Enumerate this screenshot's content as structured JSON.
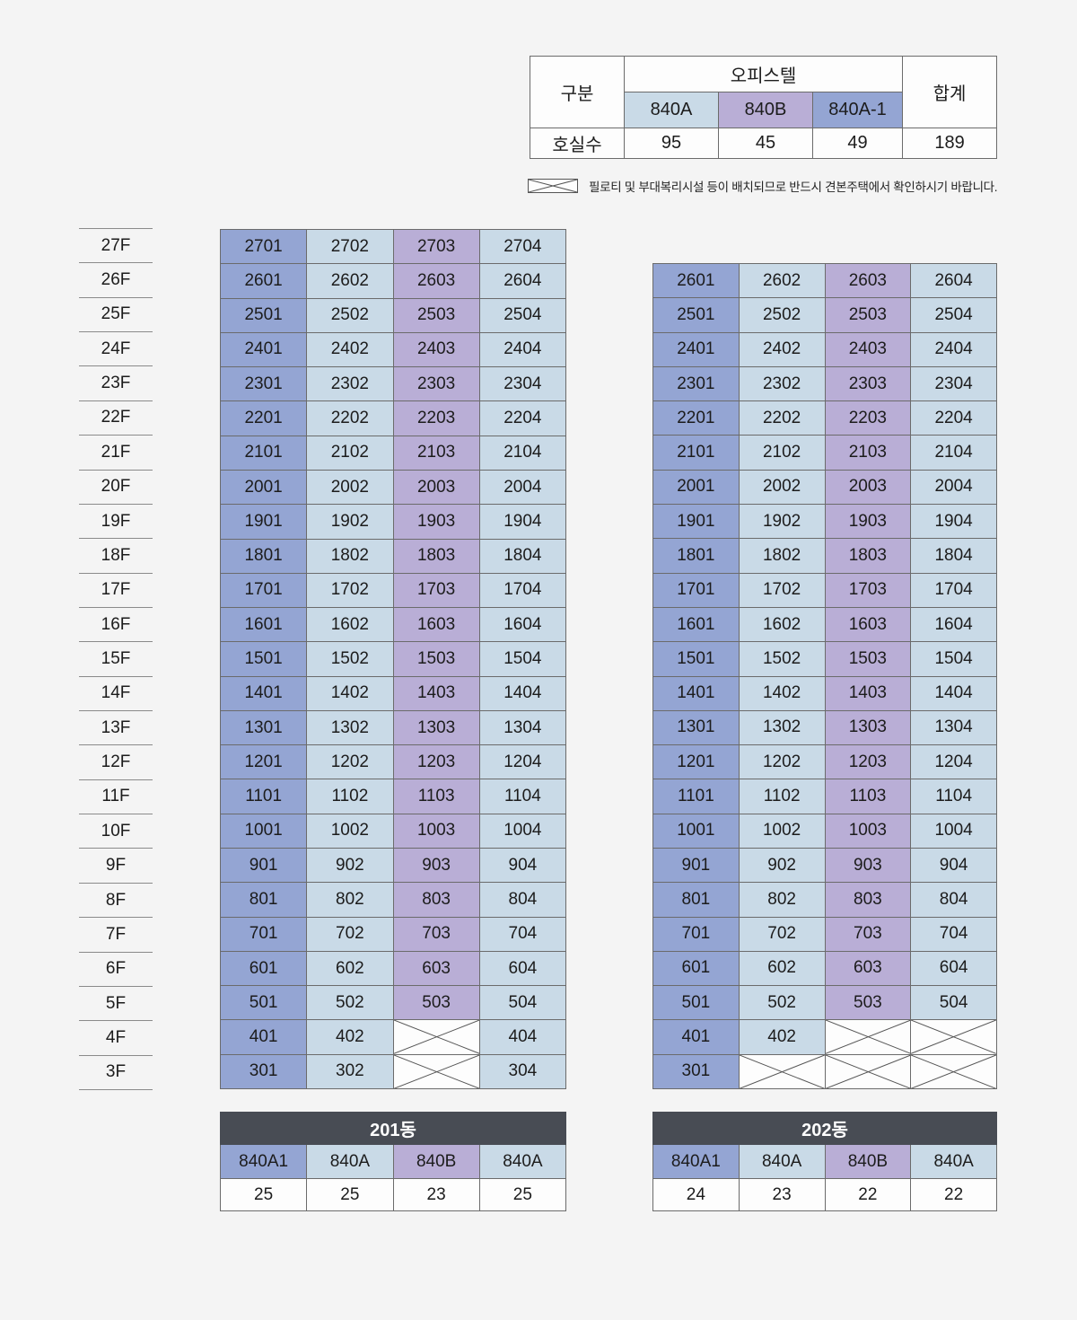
{
  "colors": {
    "background": "#f4f4f4",
    "type_840a": "#c9dae7",
    "type_840b": "#b9aed6",
    "type_840a1": "#94a5d3",
    "dong_header": "#484c54",
    "grid_border": "#6b6b6b"
  },
  "summary_table": {
    "corner_label": "구분",
    "group_label": "오피스텔",
    "total_label": "합계",
    "row_label": "호실수",
    "types": [
      {
        "label": "840A",
        "count": "95"
      },
      {
        "label": "840B",
        "count": "45"
      },
      {
        "label": "840A-1",
        "count": "49"
      }
    ],
    "total_count": "189"
  },
  "legend": {
    "note": "필로티 및 부대복리시설 등이 배치되므로 반드시 견본주택에서 확인하시기 바랍니다."
  },
  "floors": [
    "27F",
    "26F",
    "25F",
    "24F",
    "23F",
    "22F",
    "21F",
    "20F",
    "19F",
    "18F",
    "17F",
    "16F",
    "15F",
    "14F",
    "13F",
    "12F",
    "11F",
    "10F",
    "9F",
    "8F",
    "7F",
    "6F",
    "5F",
    "4F",
    "3F"
  ],
  "buildings": [
    {
      "name": "201동",
      "unit_types": [
        "840A1",
        "840A",
        "840B",
        "840A"
      ],
      "type_counts": [
        "25",
        "25",
        "23",
        "25"
      ],
      "rows": [
        [
          "2701",
          "2702",
          "2703",
          "2704"
        ],
        [
          "2601",
          "2602",
          "2603",
          "2604"
        ],
        [
          "2501",
          "2502",
          "2503",
          "2504"
        ],
        [
          "2401",
          "2402",
          "2403",
          "2404"
        ],
        [
          "2301",
          "2302",
          "2303",
          "2304"
        ],
        [
          "2201",
          "2202",
          "2203",
          "2204"
        ],
        [
          "2101",
          "2102",
          "2103",
          "2104"
        ],
        [
          "2001",
          "2002",
          "2003",
          "2004"
        ],
        [
          "1901",
          "1902",
          "1903",
          "1904"
        ],
        [
          "1801",
          "1802",
          "1803",
          "1804"
        ],
        [
          "1701",
          "1702",
          "1703",
          "1704"
        ],
        [
          "1601",
          "1602",
          "1603",
          "1604"
        ],
        [
          "1501",
          "1502",
          "1503",
          "1504"
        ],
        [
          "1401",
          "1402",
          "1403",
          "1404"
        ],
        [
          "1301",
          "1302",
          "1303",
          "1304"
        ],
        [
          "1201",
          "1202",
          "1203",
          "1204"
        ],
        [
          "1101",
          "1102",
          "1103",
          "1104"
        ],
        [
          "1001",
          "1002",
          "1003",
          "1004"
        ],
        [
          "901",
          "902",
          "903",
          "904"
        ],
        [
          "801",
          "802",
          "803",
          "804"
        ],
        [
          "701",
          "702",
          "703",
          "704"
        ],
        [
          "601",
          "602",
          "603",
          "604"
        ],
        [
          "501",
          "502",
          "503",
          "504"
        ],
        [
          "401",
          "402",
          "X",
          "404"
        ],
        [
          "301",
          "302",
          "X",
          "304"
        ]
      ]
    },
    {
      "name": "202동",
      "unit_types": [
        "840A1",
        "840A",
        "840B",
        "840A"
      ],
      "type_counts": [
        "24",
        "23",
        "22",
        "22"
      ],
      "rows": [
        [
          "2601",
          "2602",
          "2603",
          "2604"
        ],
        [
          "2501",
          "2502",
          "2503",
          "2504"
        ],
        [
          "2401",
          "2402",
          "2403",
          "2404"
        ],
        [
          "2301",
          "2302",
          "2303",
          "2304"
        ],
        [
          "2201",
          "2202",
          "2203",
          "2204"
        ],
        [
          "2101",
          "2102",
          "2103",
          "2104"
        ],
        [
          "2001",
          "2002",
          "2003",
          "2004"
        ],
        [
          "1901",
          "1902",
          "1903",
          "1904"
        ],
        [
          "1801",
          "1802",
          "1803",
          "1804"
        ],
        [
          "1701",
          "1702",
          "1703",
          "1704"
        ],
        [
          "1601",
          "1602",
          "1603",
          "1604"
        ],
        [
          "1501",
          "1502",
          "1503",
          "1504"
        ],
        [
          "1401",
          "1402",
          "1403",
          "1404"
        ],
        [
          "1301",
          "1302",
          "1303",
          "1304"
        ],
        [
          "1201",
          "1202",
          "1203",
          "1204"
        ],
        [
          "1101",
          "1102",
          "1103",
          "1104"
        ],
        [
          "1001",
          "1002",
          "1003",
          "1004"
        ],
        [
          "901",
          "902",
          "903",
          "904"
        ],
        [
          "801",
          "802",
          "803",
          "804"
        ],
        [
          "701",
          "702",
          "703",
          "704"
        ],
        [
          "601",
          "602",
          "603",
          "604"
        ],
        [
          "501",
          "502",
          "503",
          "504"
        ],
        [
          "401",
          "402",
          "X",
          "X"
        ],
        [
          "301",
          "X",
          "X",
          "X"
        ]
      ]
    }
  ]
}
